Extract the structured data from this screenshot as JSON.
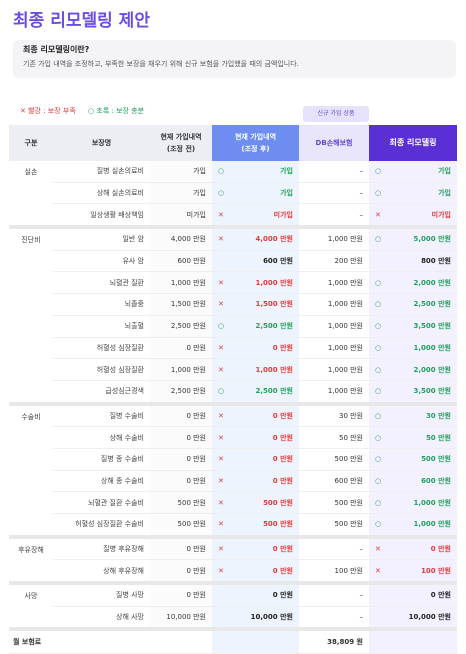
{
  "page": {
    "title": "최종 리모델링 제안"
  },
  "info": {
    "title": "최종 리모델링이란?",
    "desc": "기존 가입 내역을 조정하고, 부족한 보장을 채우기 위해 신규 보험을 가입했을 때의 금액입니다."
  },
  "legend": {
    "red_mark": "✕",
    "red_text": "빨강 : 보장 부족",
    "green_mark": "○",
    "green_text": "초록 : 보장 충분"
  },
  "new_tag": "신규 가입 상품",
  "colors": {
    "accent": "#6b4de6",
    "after_header": "#6d8ef0",
    "final_header": "#5a2fd3",
    "red": "#e03b3b",
    "green": "#22a05a"
  },
  "table": {
    "headers": {
      "category": "구분",
      "item": "보장명",
      "current_l1": "현재 가입내역",
      "current_l2": "(조정 전)",
      "after_l1": "현재 가입내역",
      "after_l2": "(조정 후)",
      "db": "DB손해보험",
      "final": "최종 리모델링"
    },
    "groups": [
      {
        "category": "실손",
        "rows": [
          {
            "item": "질병 실손의료비",
            "current": "가입",
            "after_mark": "○",
            "after_value": "가입",
            "after_status": "green",
            "db": "–",
            "final_mark": "○",
            "final_value": "가입",
            "final_status": "green"
          },
          {
            "item": "상해 실손의료비",
            "current": "가입",
            "after_mark": "○",
            "after_value": "가입",
            "after_status": "green",
            "db": "–",
            "final_mark": "○",
            "final_value": "가입",
            "final_status": "green"
          },
          {
            "item": "일상생활 배상책임",
            "current": "미가입",
            "after_mark": "✕",
            "after_value": "미가입",
            "after_status": "red",
            "db": "–",
            "final_mark": "✕",
            "final_value": "미가입",
            "final_status": "red"
          }
        ]
      },
      {
        "category": "진단비",
        "rows": [
          {
            "item": "일반 암",
            "current": "4,000 만원",
            "after_mark": "✕",
            "after_value": "4,000 만원",
            "after_status": "red",
            "db": "1,000 만원",
            "final_mark": "○",
            "final_value": "5,000 만원",
            "final_status": "green"
          },
          {
            "item": "유사 암",
            "current": "600 만원",
            "after_mark": "",
            "after_value": "600 만원",
            "after_status": "plain",
            "db": "200 만원",
            "final_mark": "",
            "final_value": "800 만원",
            "final_status": "plain"
          },
          {
            "item": "뇌혈관 질환",
            "current": "1,000 만원",
            "after_mark": "✕",
            "after_value": "1,000 만원",
            "after_status": "red",
            "db": "1,000 만원",
            "final_mark": "○",
            "final_value": "2,000 만원",
            "final_status": "green"
          },
          {
            "item": "뇌졸중",
            "current": "1,500 만원",
            "after_mark": "✕",
            "after_value": "1,500 만원",
            "after_status": "red",
            "db": "1,000 만원",
            "final_mark": "○",
            "final_value": "2,500 만원",
            "final_status": "green"
          },
          {
            "item": "뇌출혈",
            "current": "2,500 만원",
            "after_mark": "○",
            "after_value": "2,500 만원",
            "after_status": "green",
            "db": "1,000 만원",
            "final_mark": "○",
            "final_value": "3,500 만원",
            "final_status": "green"
          },
          {
            "item": "허혈성 심장질환",
            "current": "0 만원",
            "after_mark": "✕",
            "after_value": "0 만원",
            "after_status": "red",
            "db": "1,000 만원",
            "final_mark": "○",
            "final_value": "1,000 만원",
            "final_status": "green"
          },
          {
            "item": "허혈성 심장질환",
            "current": "1,000 만원",
            "after_mark": "✕",
            "after_value": "1,000 만원",
            "after_status": "red",
            "db": "1,000 만원",
            "final_mark": "○",
            "final_value": "2,000 만원",
            "final_status": "green"
          },
          {
            "item": "급성심근경색",
            "current": "2,500 만원",
            "after_mark": "○",
            "after_value": "2,500 만원",
            "after_status": "green",
            "db": "1,000 만원",
            "final_mark": "○",
            "final_value": "3,500 만원",
            "final_status": "green"
          }
        ]
      },
      {
        "category": "수술비",
        "rows": [
          {
            "item": "질병 수술비",
            "current": "0 만원",
            "after_mark": "✕",
            "after_value": "0 만원",
            "after_status": "red",
            "db": "30 만원",
            "final_mark": "○",
            "final_value": "30 만원",
            "final_status": "green"
          },
          {
            "item": "상해 수술비",
            "current": "0 만원",
            "after_mark": "✕",
            "after_value": "0 만원",
            "after_status": "red",
            "db": "50 만원",
            "final_mark": "○",
            "final_value": "50 만원",
            "final_status": "green"
          },
          {
            "item": "질병 종 수술비",
            "current": "0 만원",
            "after_mark": "✕",
            "after_value": "0 만원",
            "after_status": "red",
            "db": "500 만원",
            "final_mark": "○",
            "final_value": "500 만원",
            "final_status": "green"
          },
          {
            "item": "상해 종 수술비",
            "current": "0 만원",
            "after_mark": "✕",
            "after_value": "0 만원",
            "after_status": "red",
            "db": "600 만원",
            "final_mark": "○",
            "final_value": "600 만원",
            "final_status": "green"
          },
          {
            "item": "뇌혈관 질환 수술비",
            "current": "500 만원",
            "after_mark": "✕",
            "after_value": "500 만원",
            "after_status": "red",
            "db": "500 만원",
            "final_mark": "○",
            "final_value": "1,000 만원",
            "final_status": "green"
          },
          {
            "item": "허혈성 심장질환 수술비",
            "current": "500 만원",
            "after_mark": "✕",
            "after_value": "500 만원",
            "after_status": "red",
            "db": "500 만원",
            "final_mark": "○",
            "final_value": "1,000 만원",
            "final_status": "green"
          }
        ]
      },
      {
        "category": "후유장해",
        "rows": [
          {
            "item": "질병 후유장해",
            "current": "0 만원",
            "after_mark": "✕",
            "after_value": "0 만원",
            "after_status": "red",
            "db": "–",
            "final_mark": "✕",
            "final_value": "0 만원",
            "final_status": "red"
          },
          {
            "item": "상해 후유장해",
            "current": "0 만원",
            "after_mark": "✕",
            "after_value": "0 만원",
            "after_status": "red",
            "db": "100 만원",
            "final_mark": "✕",
            "final_value": "100 만원",
            "final_status": "red"
          }
        ]
      },
      {
        "category": "사망",
        "rows": [
          {
            "item": "질병 사망",
            "current": "0 만원",
            "after_mark": "",
            "after_value": "0 만원",
            "after_status": "plain",
            "db": "–",
            "final_mark": "",
            "final_value": "0 만원",
            "final_status": "plain"
          },
          {
            "item": "상해 사망",
            "current": "10,000 만원",
            "after_mark": "",
            "after_value": "10,000 만원",
            "after_status": "plain",
            "db": "–",
            "final_mark": "",
            "final_value": "10,000 만원",
            "final_status": "plain"
          }
        ]
      }
    ],
    "total": {
      "label": "월 보험료",
      "db": "38,809 원"
    }
  }
}
